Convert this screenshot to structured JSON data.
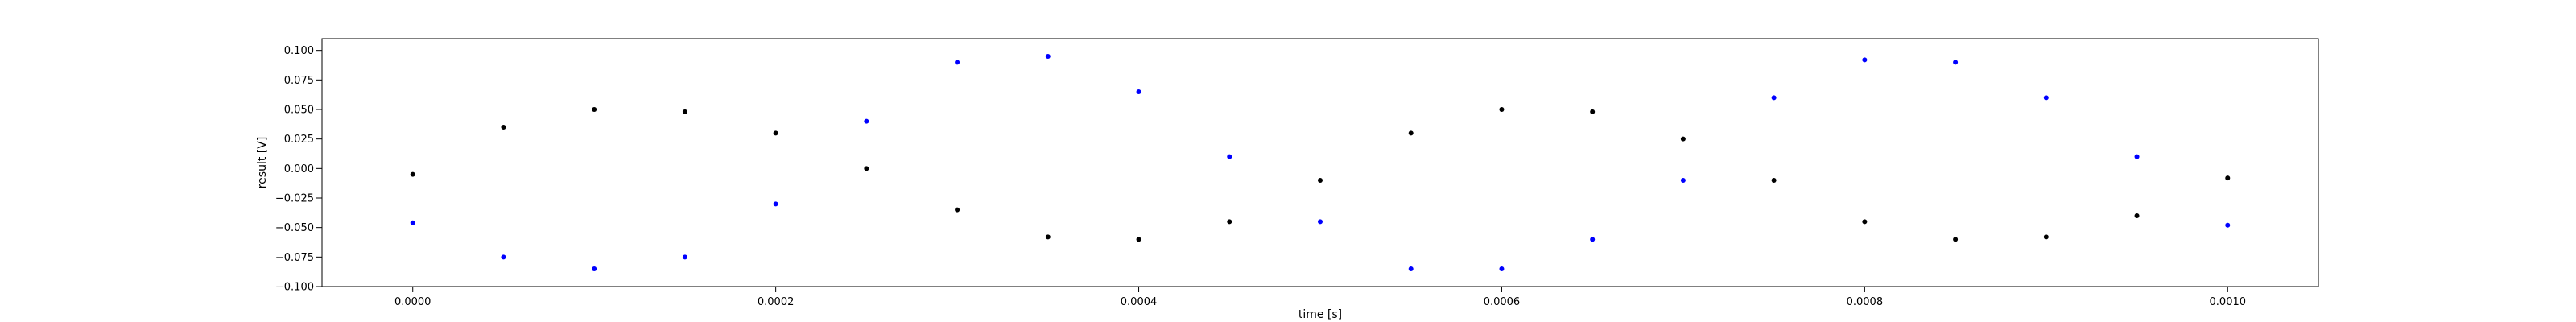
{
  "chart_data": {
    "type": "scatter",
    "title": "",
    "xlabel": "time [s]",
    "ylabel": "result [V]",
    "xlim": [
      -5e-05,
      0.00105
    ],
    "ylim": [
      -0.1,
      0.11
    ],
    "x_ticks": [
      0.0,
      0.0002,
      0.0004,
      0.0006,
      0.0008,
      0.001
    ],
    "x_tick_labels": [
      "0.0000",
      "0.0002",
      "0.0004",
      "0.0006",
      "0.0008",
      "0.0010"
    ],
    "y_ticks": [
      -0.1,
      -0.075,
      -0.05,
      -0.025,
      0.0,
      0.025,
      0.05,
      0.075,
      0.1
    ],
    "y_tick_labels": [
      "−0.100",
      "−0.075",
      "−0.050",
      "−0.025",
      "0.000",
      "0.025",
      "0.050",
      "0.075",
      "0.100"
    ],
    "grid": false,
    "legend": "none",
    "series": [
      {
        "color": "#0000ff",
        "x": [
          0.0,
          5e-05,
          0.0001,
          0.00015,
          0.0002,
          0.00025,
          0.0003,
          0.00035,
          0.0004,
          0.00045,
          0.0005,
          0.00055,
          0.0006,
          0.00065,
          0.0007,
          0.00075,
          0.0008,
          0.00085,
          0.0009,
          0.00095,
          0.001
        ],
        "y": [
          -0.046,
          -0.075,
          -0.085,
          -0.075,
          -0.03,
          0.04,
          0.09,
          0.095,
          0.065,
          0.01,
          -0.045,
          -0.085,
          -0.085,
          -0.06,
          -0.01,
          0.06,
          0.092,
          0.09,
          0.06,
          0.01,
          -0.048
        ]
      },
      {
        "color": "#000000",
        "x": [
          0.0,
          5e-05,
          0.0001,
          0.00015,
          0.0002,
          0.00025,
          0.0003,
          0.00035,
          0.0004,
          0.00045,
          0.0005,
          0.00055,
          0.0006,
          0.00065,
          0.0007,
          0.00075,
          0.0008,
          0.00085,
          0.0009,
          0.00095,
          0.001
        ],
        "y": [
          -0.005,
          0.035,
          0.05,
          0.048,
          0.03,
          0.0,
          -0.035,
          -0.058,
          -0.06,
          -0.045,
          -0.01,
          0.03,
          0.05,
          0.048,
          0.025,
          -0.01,
          -0.045,
          -0.06,
          -0.058,
          -0.04,
          -0.008
        ]
      }
    ]
  }
}
